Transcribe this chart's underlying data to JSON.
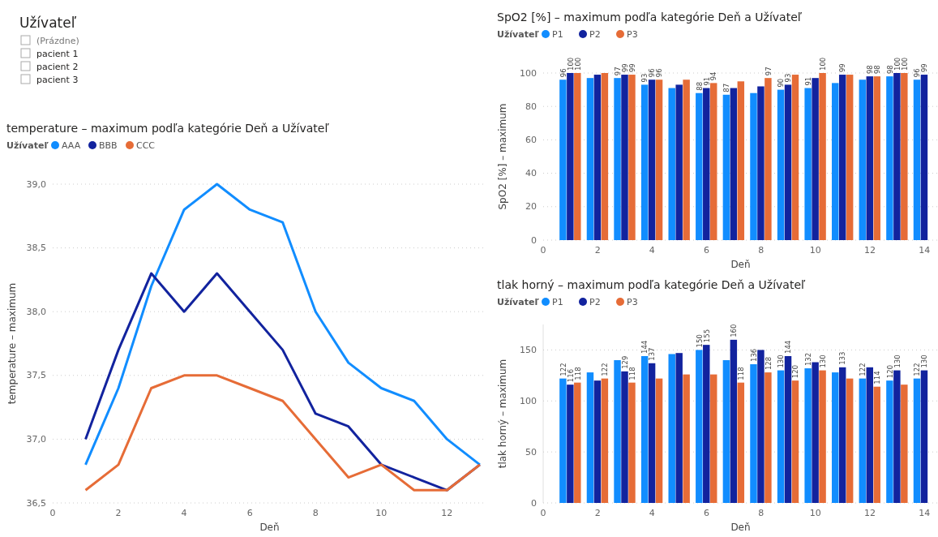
{
  "chart_data": [
    {
      "type": "other",
      "title": "Užívateľ",
      "categories": [
        "(Prázdne)",
        "pacient 1",
        "pacient 2",
        "pacient 3"
      ]
    },
    {
      "type": "bar",
      "title": "SpO2 [%] – maximum podľa kategórie Deň a Užívateľ",
      "xlabel": "Deň",
      "ylabel": "SpO2 [%] – maximum",
      "legend_title": "Užívateľ",
      "legend": "top left",
      "grid": "y",
      "x": [
        1,
        2,
        3,
        4,
        5,
        6,
        7,
        8,
        9,
        10,
        11,
        12,
        13,
        14
      ],
      "xlim": [
        0,
        14.5
      ],
      "xticks": [
        0,
        2,
        4,
        6,
        8,
        10,
        12,
        14
      ],
      "ylim": [
        0,
        100
      ],
      "yticks": [
        0,
        20,
        40,
        60,
        80,
        100
      ],
      "series": [
        {
          "name": "P1",
          "color": "#118dff",
          "values": [
            96,
            97,
            97,
            93,
            91,
            88,
            87,
            88,
            90,
            91,
            94,
            96,
            98,
            96
          ],
          "value_labels": [
            "96",
            null,
            "97",
            "93",
            null,
            "88",
            "87",
            null,
            "90",
            "91",
            null,
            null,
            "98",
            "96"
          ]
        },
        {
          "name": "P2",
          "color": "#12239e",
          "values": [
            100,
            99,
            99,
            96,
            93,
            91,
            91,
            92,
            93,
            97,
            99,
            98,
            100,
            99
          ],
          "value_labels": [
            "100",
            null,
            "99",
            "96",
            null,
            "91",
            null,
            null,
            "93",
            null,
            "99",
            "98",
            "100",
            "99"
          ]
        },
        {
          "name": "P3",
          "color": "#e66c37",
          "values": [
            100,
            100,
            99,
            96,
            96,
            94,
            95,
            97,
            99,
            100,
            99,
            98,
            100,
            null
          ],
          "value_labels": [
            "100",
            null,
            "99",
            "96",
            null,
            "94",
            null,
            "97",
            null,
            "100",
            null,
            "98",
            "100",
            null
          ]
        }
      ]
    },
    {
      "type": "line",
      "title": "temperature – maximum podľa kategórie Deň a Užívateľ",
      "xlabel": "Deň",
      "ylabel": "temperature – maximum",
      "legend_title": "Užívateľ",
      "legend": "top left",
      "grid": "y",
      "x": [
        1,
        2,
        3,
        4,
        5,
        6,
        7,
        8,
        9,
        10,
        11,
        12,
        13
      ],
      "xlim": [
        0,
        13.2
      ],
      "xticks": [
        0,
        2,
        4,
        6,
        8,
        10,
        12
      ],
      "ylim": [
        36.5,
        39.0
      ],
      "yticks": [
        {
          "value": 36.5,
          "label": "36,5"
        },
        {
          "value": 37.0,
          "label": "37,0"
        },
        {
          "value": 37.5,
          "label": "37,5"
        },
        {
          "value": 38.0,
          "label": "38,0"
        },
        {
          "value": 38.5,
          "label": "38,5"
        },
        {
          "value": 39.0,
          "label": "39,0"
        }
      ],
      "series": [
        {
          "name": "AAA",
          "color": "#118dff",
          "values": [
            36.8,
            37.4,
            38.2,
            38.8,
            39.0,
            38.8,
            38.7,
            38.0,
            37.6,
            37.4,
            37.3,
            37.0,
            36.8
          ]
        },
        {
          "name": "BBB",
          "color": "#12239e",
          "values": [
            37.0,
            37.7,
            38.3,
            38.0,
            38.3,
            38.0,
            37.7,
            37.2,
            37.1,
            36.8,
            36.7,
            36.6,
            36.8
          ]
        },
        {
          "name": "CCC",
          "color": "#e66c37",
          "values": [
            36.6,
            36.8,
            37.4,
            37.5,
            37.5,
            37.4,
            37.3,
            37.0,
            36.7,
            36.8,
            36.6,
            36.6,
            36.8
          ]
        }
      ]
    },
    {
      "type": "bar",
      "title": "tlak horný – maximum podľa kategórie Deň a Užívateľ",
      "xlabel": "Deň",
      "ylabel": "tlak horný – maximum",
      "legend_title": "Užívateľ",
      "legend": "top left",
      "grid": "y",
      "x": [
        1,
        2,
        3,
        4,
        5,
        6,
        7,
        8,
        9,
        10,
        11,
        12,
        13,
        14
      ],
      "xlim": [
        0,
        14.5
      ],
      "xticks": [
        0,
        2,
        4,
        6,
        8,
        10,
        12,
        14
      ],
      "ylim": [
        0,
        175
      ],
      "yticks": [
        0,
        50,
        100,
        150
      ],
      "series": [
        {
          "name": "P1",
          "color": "#118dff",
          "values": [
            122,
            128,
            140,
            144,
            146,
            150,
            140,
            136,
            130,
            132,
            128,
            122,
            120,
            122
          ],
          "value_labels": [
            "122",
            null,
            null,
            "144",
            null,
            "150",
            null,
            "136",
            "130",
            "132",
            null,
            "122",
            "120",
            "122"
          ]
        },
        {
          "name": "P2",
          "color": "#12239e",
          "values": [
            116,
            120,
            129,
            137,
            147,
            155,
            160,
            150,
            144,
            138,
            133,
            133,
            130,
            130
          ],
          "value_labels": [
            "116",
            null,
            "129",
            "137",
            null,
            "155",
            "160",
            null,
            "144",
            null,
            "133",
            null,
            "130",
            "130"
          ]
        },
        {
          "name": "P3",
          "color": "#e66c37",
          "values": [
            118,
            122,
            118,
            122,
            126,
            126,
            118,
            128,
            120,
            130,
            122,
            114,
            116,
            null
          ],
          "value_labels": [
            "118",
            "122",
            "118",
            null,
            null,
            null,
            "118",
            "128",
            "120",
            "130",
            null,
            "114",
            null,
            null
          ]
        }
      ]
    }
  ]
}
